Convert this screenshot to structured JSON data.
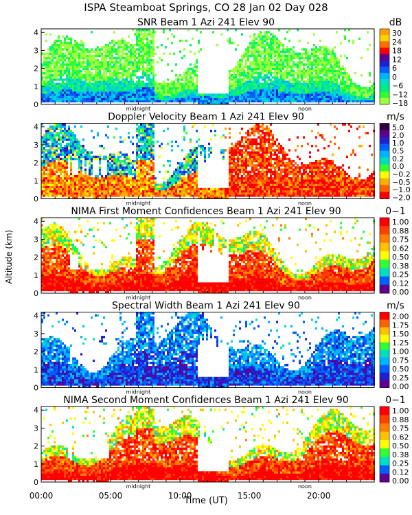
{
  "title": "ISPA Steamboat Springs, CO   28 Jan 02 Day 028",
  "y_axis_label": "Altitude (km)",
  "x_axis_label": "Time (UT)",
  "x_ticks": [
    "00:00",
    "05:00",
    "10:00",
    "15:00",
    "20:00"
  ],
  "x_markers": [
    "midnight",
    "noon"
  ],
  "chart_data": [
    {
      "type": "heatmap",
      "title": "SNR Beam 1 Azi 241 Elev 90",
      "unit": "dB",
      "xlim": [
        0,
        24
      ],
      "ylim": [
        0,
        4.2
      ],
      "yticks": [
        "0",
        "1",
        "2",
        "3",
        "4"
      ],
      "colorbar_labels": [
        "30",
        "24",
        "18",
        "12",
        "6",
        "0",
        "−6",
        "−12",
        "−18"
      ],
      "colorbar_colors": [
        "#ffa000",
        "#ffd200",
        "#ff7000",
        "#ff0000",
        "#600090",
        "#2020d0",
        "#0060ff",
        "#00b4ff",
        "#00e0c0",
        "#00f080",
        "#30ff30",
        "#a0ff40"
      ]
    },
    {
      "type": "heatmap",
      "title": "Doppler Velocity Beam 1 Azi 241 Elev 90",
      "unit": "m/s",
      "xlim": [
        0,
        24
      ],
      "ylim": [
        0,
        4.2
      ],
      "yticks": [
        "0",
        "1",
        "2",
        "3",
        "4"
      ],
      "colorbar_labels": [
        "5.0",
        "2.0",
        "1.0",
        "0.5",
        "0.2",
        "0.0",
        "−0.2",
        "−0.5",
        "−1.0",
        "−2.0"
      ],
      "colorbar_colors": [
        "#300040",
        "#600090",
        "#2020d0",
        "#0060ff",
        "#00b4ff",
        "#00e0c0",
        "#30ff30",
        "#ffff00",
        "#ffb000",
        "#ff6000",
        "#ff0000"
      ]
    },
    {
      "type": "heatmap",
      "title": "NIMA First Moment Confidences Beam 1 Azi 241 Elev 90",
      "unit": "0−1",
      "xlim": [
        0,
        24
      ],
      "ylim": [
        0,
        4.2
      ],
      "yticks": [
        "0",
        "1",
        "2",
        "3",
        "4"
      ],
      "colorbar_labels": [
        "1.00",
        "0.88",
        "0.75",
        "0.62",
        "0.50",
        "0.38",
        "0.25",
        "0.12",
        "0.00"
      ],
      "colorbar_colors": [
        "#ff0000",
        "#ff4000",
        "#ff8000",
        "#ffc000",
        "#ffff00",
        "#30ff30",
        "#00e0c0",
        "#0060ff",
        "#600090"
      ]
    },
    {
      "type": "heatmap",
      "title": "Spectral Width Beam 1 Azi 241 Elev 90",
      "unit": "m/s",
      "xlim": [
        0,
        24
      ],
      "ylim": [
        0,
        4.2
      ],
      "yticks": [
        "0",
        "1",
        "2",
        "3",
        "4"
      ],
      "colorbar_labels": [
        "2.00",
        "1.75",
        "1.50",
        "1.25",
        "1.00",
        "0.75",
        "0.50",
        "0.25",
        "0.00"
      ],
      "colorbar_colors": [
        "#ff0000",
        "#ff6000",
        "#ffc000",
        "#ffff00",
        "#30ff30",
        "#00e0c0",
        "#00b4ff",
        "#0060ff",
        "#2020d0",
        "#600090"
      ]
    },
    {
      "type": "heatmap",
      "title": "NIMA Second Moment Confidences Beam 1 Azi 241 Elev 90",
      "unit": "0−1",
      "xlim": [
        0,
        24
      ],
      "ylim": [
        0,
        4.2
      ],
      "yticks": [
        "0",
        "1",
        "2",
        "3",
        "4"
      ],
      "colorbar_labels": [
        "1.00",
        "0.88",
        "0.75",
        "0.62",
        "0.50",
        "0.38",
        "0.25",
        "0.12",
        "0.00"
      ],
      "colorbar_colors": [
        "#ff0000",
        "#ff4000",
        "#ff8000",
        "#ffc000",
        "#ffff00",
        "#30ff30",
        "#00e0c0",
        "#0060ff",
        "#600090"
      ]
    }
  ]
}
